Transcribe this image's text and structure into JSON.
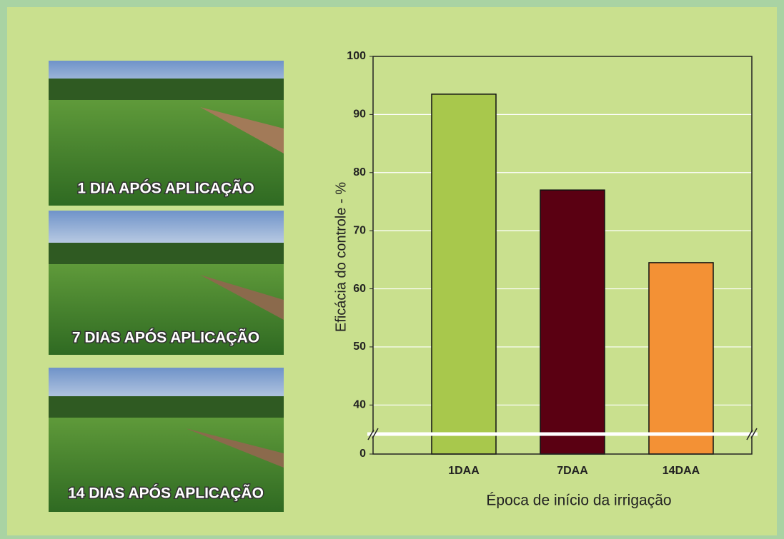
{
  "photos": [
    {
      "caption": "1 DIA APÓS APLICAÇÃO"
    },
    {
      "caption": "7 DIAS APÓS APLICAÇÃO"
    },
    {
      "caption": "14 DIAS APÓS APLICAÇÃO"
    }
  ],
  "chart_data": {
    "type": "bar",
    "y_label": "Eficácia do controle - %",
    "x_label": "Época de início da irrigação",
    "categories": [
      "1DAA",
      "7DAA",
      "14DAA"
    ],
    "values": [
      93.5,
      77,
      64.5
    ],
    "colors": [
      "#a8c84c",
      "#5a0012",
      "#f39135"
    ],
    "ylim": [
      0,
      100
    ],
    "axis_break": [
      0,
      35
    ],
    "yticks": [
      0,
      40,
      50,
      60,
      70,
      80,
      90,
      100
    ],
    "grid": true
  }
}
